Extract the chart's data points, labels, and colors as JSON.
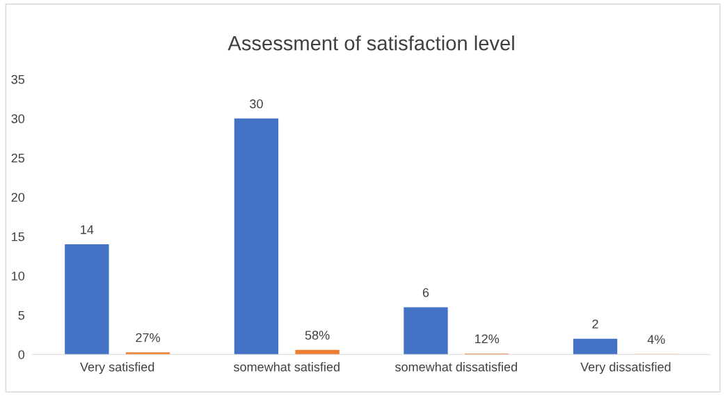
{
  "chart_data": {
    "type": "bar",
    "title": "Assessment of satisfaction level",
    "categories": [
      "Very satisfied",
      "somewhat satisfied",
      "somewhat dissatisfied",
      "Very dissatisfied"
    ],
    "series": [
      {
        "color": "#4472c4",
        "values": [
          14,
          30,
          6,
          2
        ],
        "value_labels": [
          "14",
          "30",
          "6",
          "2"
        ]
      },
      {
        "color": "#ed7d31",
        "values": [
          0.27,
          0.58,
          0.12,
          0.04
        ],
        "value_labels": [
          "27%",
          "58%",
          "12%",
          "4%"
        ]
      }
    ],
    "ylim": [
      0,
      35
    ],
    "yticks": [
      0,
      5,
      10,
      15,
      20,
      25,
      30,
      35
    ],
    "grid": false,
    "legend": false
  }
}
